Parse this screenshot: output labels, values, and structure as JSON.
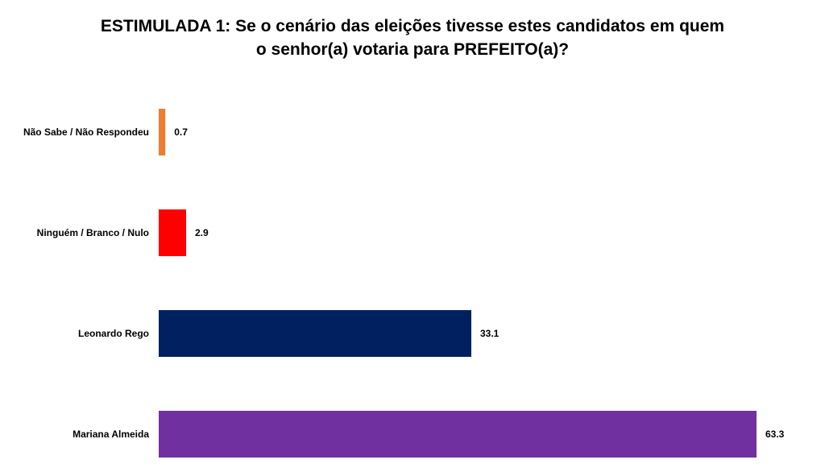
{
  "chart_data": {
    "type": "bar",
    "orientation": "horizontal",
    "title_lines": [
      "ESTIMULADA 1: Se o cenário das eleições tivesse estes candidatos em quem",
      "o senhor(a) votaria para PREFEITO(a)?"
    ],
    "categories": [
      "Não Sabe / Não Respondeu",
      "Ninguém / Branco / Nulo",
      "Leonardo Rego",
      "Mariana Almeida"
    ],
    "values": [
      0.7,
      2.9,
      33.1,
      63.3
    ],
    "value_labels": [
      "0.7",
      "2.9",
      "33.1",
      "63.3"
    ],
    "colors": [
      "#ED7D31",
      "#FF0000",
      "#002060",
      "#7030A0"
    ],
    "xlim": [
      0,
      63.3
    ],
    "grid": false,
    "legend": "none"
  }
}
